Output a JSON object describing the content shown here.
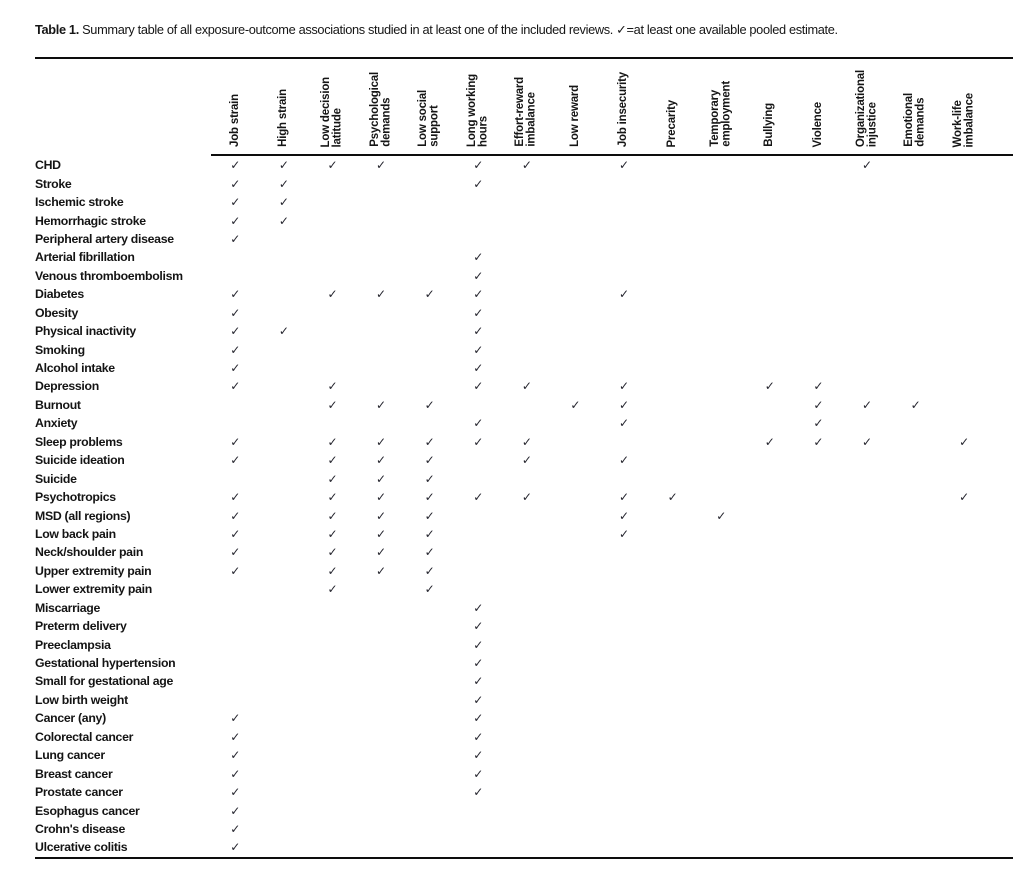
{
  "title": {
    "label": "Table 1.",
    "text": "Summary table of all exposure-outcome associations studied in at least one of the included reviews. ✓=at least one available pooled estimate."
  },
  "colors": {
    "text": "#1a1a1a",
    "check": "#26262f",
    "rule": "#0d0d0d",
    "background": "#ffffff"
  },
  "table": {
    "check_symbol": "✓",
    "row_header_title": "",
    "columns": [
      "Job strain",
      "High strain",
      "Low decision\nlatitude",
      "Psychological\ndemands",
      "Low social\nsupport",
      "Long working\nhours",
      "Effort-reward\nimbalance",
      "Low reward",
      "Job insecurity",
      "Precarity",
      "Temporary\nemployment",
      "Bullying",
      "Violence",
      "Organizational\ninjustice",
      "Emotional\ndemands",
      "Work-life\nimbalance"
    ],
    "rows": [
      {
        "outcome": "CHD",
        "checks": [
          1,
          2,
          3,
          4,
          6,
          7,
          9,
          14
        ]
      },
      {
        "outcome": "Stroke",
        "checks": [
          1,
          2,
          6
        ]
      },
      {
        "outcome": "Ischemic stroke",
        "checks": [
          1,
          2
        ]
      },
      {
        "outcome": "Hemorrhagic stroke",
        "checks": [
          1,
          2
        ]
      },
      {
        "outcome": "Peripheral artery disease",
        "checks": [
          1
        ]
      },
      {
        "outcome": "Arterial fibrillation",
        "checks": [
          6
        ]
      },
      {
        "outcome": "Venous thromboembolism",
        "checks": [
          6
        ]
      },
      {
        "outcome": "Diabetes",
        "checks": [
          1,
          3,
          4,
          5,
          6,
          9
        ]
      },
      {
        "outcome": "Obesity",
        "checks": [
          1,
          6
        ]
      },
      {
        "outcome": "Physical inactivity",
        "checks": [
          1,
          2,
          6
        ]
      },
      {
        "outcome": "Smoking",
        "checks": [
          1,
          6
        ]
      },
      {
        "outcome": "Alcohol intake",
        "checks": [
          1,
          6
        ]
      },
      {
        "outcome": "Depression",
        "checks": [
          1,
          3,
          6,
          7,
          9,
          12,
          13
        ]
      },
      {
        "outcome": "Burnout",
        "checks": [
          3,
          4,
          5,
          8,
          9,
          13,
          14,
          15
        ]
      },
      {
        "outcome": "Anxiety",
        "checks": [
          6,
          9,
          13
        ]
      },
      {
        "outcome": "Sleep problems",
        "checks": [
          1,
          3,
          4,
          5,
          6,
          7,
          12,
          13,
          14,
          16
        ]
      },
      {
        "outcome": "Suicide ideation",
        "checks": [
          1,
          3,
          4,
          5,
          7,
          9
        ]
      },
      {
        "outcome": "Suicide",
        "checks": [
          3,
          4,
          5
        ]
      },
      {
        "outcome": "Psychotropics",
        "checks": [
          1,
          3,
          4,
          5,
          6,
          7,
          9,
          10,
          16
        ]
      },
      {
        "outcome": "MSD (all regions)",
        "checks": [
          1,
          3,
          4,
          5,
          9,
          11
        ]
      },
      {
        "outcome": "Low back pain",
        "checks": [
          1,
          3,
          4,
          5,
          9
        ]
      },
      {
        "outcome": "Neck/shoulder pain",
        "checks": [
          1,
          3,
          4,
          5
        ]
      },
      {
        "outcome": "Upper extremity pain",
        "checks": [
          1,
          3,
          4,
          5
        ]
      },
      {
        "outcome": "Lower extremity pain",
        "checks": [
          3,
          5
        ]
      },
      {
        "outcome": "Miscarriage",
        "checks": [
          6
        ]
      },
      {
        "outcome": "Preterm delivery",
        "checks": [
          6
        ]
      },
      {
        "outcome": "Preeclampsia",
        "checks": [
          6
        ]
      },
      {
        "outcome": "Gestational hypertension",
        "checks": [
          6
        ]
      },
      {
        "outcome": "Small for gestational age",
        "checks": [
          6
        ]
      },
      {
        "outcome": "Low birth weight",
        "checks": [
          6
        ]
      },
      {
        "outcome": "Cancer (any)",
        "checks": [
          1,
          6
        ]
      },
      {
        "outcome": "Colorectal cancer",
        "checks": [
          1,
          6
        ]
      },
      {
        "outcome": "Lung cancer",
        "checks": [
          1,
          6
        ]
      },
      {
        "outcome": "Breast cancer",
        "checks": [
          1,
          6
        ]
      },
      {
        "outcome": "Prostate cancer",
        "checks": [
          1,
          6
        ]
      },
      {
        "outcome": "Esophagus cancer",
        "checks": [
          1
        ]
      },
      {
        "outcome": "Crohn's disease",
        "checks": [
          1
        ]
      },
      {
        "outcome": "Ulcerative colitis",
        "checks": [
          1
        ]
      }
    ]
  }
}
